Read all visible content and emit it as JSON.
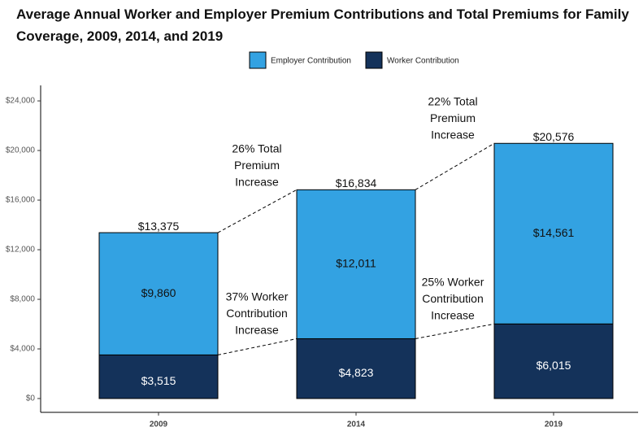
{
  "chart_data": {
    "type": "stacked_bar",
    "title": "Average Annual Worker and Employer Premium Contributions and Total Premiums for Family Coverage, 2009, 2014, and 2019",
    "categories": [
      "2009",
      "2014",
      "2019"
    ],
    "series": [
      {
        "name": "Worker Contribution",
        "color": "#14325a",
        "values": [
          3515,
          4823,
          6015
        ],
        "value_labels": [
          "$3,515",
          "$4,823",
          "$6,015"
        ]
      },
      {
        "name": "Employer Contribution",
        "color": "#33a2e2",
        "values": [
          9860,
          12011,
          14561
        ],
        "value_labels": [
          "$9,860",
          "$12,011",
          "$14,561"
        ]
      }
    ],
    "totals": {
      "values": [
        13375,
        16834,
        20576
      ],
      "value_labels": [
        "$13,375",
        "$16,834",
        "$20,576"
      ]
    },
    "annotations": [
      {
        "lines": [
          "26% Total",
          "Premium",
          "Increase"
        ]
      },
      {
        "lines": [
          "37% Worker",
          "Contribution",
          "Increase"
        ]
      },
      {
        "lines": [
          "22% Total",
          "Premium",
          "Increase"
        ]
      },
      {
        "lines": [
          "25% Worker",
          "Contribution",
          "Increase"
        ]
      }
    ],
    "ylim": [
      -1115,
      25250
    ],
    "yticks": [
      {
        "value": 0,
        "label": "$0"
      },
      {
        "value": 4000,
        "label": "$4,000"
      },
      {
        "value": 8000,
        "label": "$8,000"
      },
      {
        "value": 12000,
        "label": "$12,000"
      },
      {
        "value": 16000,
        "label": "$16,000"
      },
      {
        "value": 20000,
        "label": "$20,000"
      },
      {
        "value": 24000,
        "label": "$24,000"
      }
    ],
    "legend": "top"
  }
}
